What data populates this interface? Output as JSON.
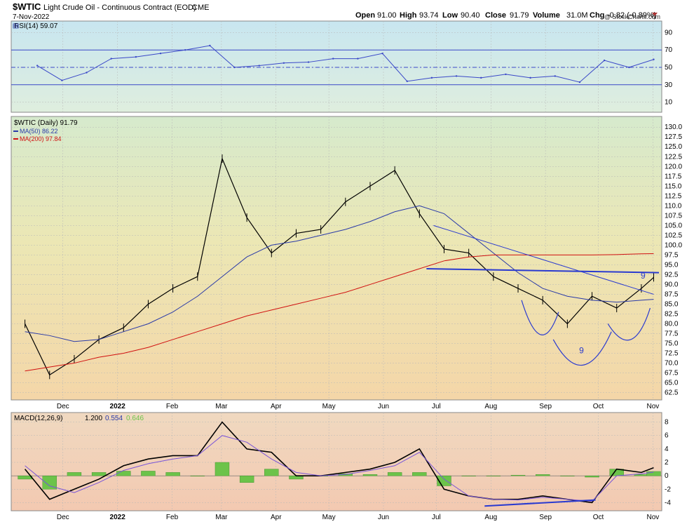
{
  "header": {
    "symbol": "$WTIC",
    "name": "Light Crude Oil - Continuous Contract (EOD)",
    "exchange": "CME",
    "date": "7-Nov-2022",
    "watermark": "@ StockCharts.com",
    "quote": {
      "open_label": "Open",
      "open": "91.00",
      "high_label": "High",
      "high": "93.74",
      "low_label": "Low",
      "low": "90.40",
      "close_label": "Close",
      "close": "91.79",
      "volume_label": "Volume",
      "volume": "31.0M",
      "chg_label": "Chg",
      "chg": "-0.82 (-0.89%)"
    }
  },
  "colors": {
    "price_line": "#000000",
    "ma50": "#2a3aa8",
    "ma200": "#d01010",
    "rsi_line": "#3a48c8",
    "rsi_fill": "#5b8fd0",
    "macd_line": "#000000",
    "signal_line": "#7a55d8",
    "hist_fill": "#6cc34a",
    "annotation": "#2a3ad0",
    "grid": "#b8b8b8"
  },
  "chart_data": [
    {
      "type": "line",
      "panel": "rsi",
      "legend": "RSI(14) 59.07",
      "ylim": [
        0,
        100
      ],
      "yticks": [
        10,
        30,
        50,
        70,
        90
      ],
      "reference_lines": [
        30,
        50,
        70
      ],
      "x": [
        "2021-11-22",
        "2021-12-06",
        "2021-12-20",
        "2022-01-03",
        "2022-01-17",
        "2022-01-31",
        "2022-02-14",
        "2022-02-28",
        "2022-03-14",
        "2022-03-28",
        "2022-04-11",
        "2022-04-25",
        "2022-05-09",
        "2022-05-23",
        "2022-06-06",
        "2022-06-20",
        "2022-07-04",
        "2022-07-18",
        "2022-08-01",
        "2022-08-15",
        "2022-08-29",
        "2022-09-12",
        "2022-09-26",
        "2022-10-10",
        "2022-10-24",
        "2022-11-07"
      ],
      "values": [
        52,
        35,
        44,
        60,
        62,
        66,
        70,
        75,
        50,
        52,
        55,
        56,
        60,
        60,
        66,
        34,
        38,
        40,
        38,
        42,
        38,
        40,
        33,
        58,
        50,
        59.07
      ]
    },
    {
      "type": "line",
      "panel": "price",
      "legend": "$WTIC (Daily) 91.79",
      "ylim": [
        61,
        132
      ],
      "yticks": [
        62.5,
        65.0,
        67.5,
        70.0,
        72.5,
        75.0,
        77.5,
        80.0,
        82.5,
        85.0,
        87.5,
        90.0,
        92.5,
        95.0,
        97.5,
        100.0,
        102.5,
        105.0,
        107.5,
        110.0,
        112.5,
        115.0,
        117.5,
        120.0,
        122.5,
        125.0,
        127.5,
        130.0
      ],
      "x_ticks": [
        "Dec",
        "2022",
        "Feb",
        "Mar",
        "Apr",
        "May",
        "Jun",
        "Jul",
        "Aug",
        "Sep",
        "Oct",
        "Nov"
      ],
      "x": [
        "2021-11-15",
        "2021-11-29",
        "2021-12-13",
        "2021-12-27",
        "2022-01-10",
        "2022-01-24",
        "2022-02-07",
        "2022-02-21",
        "2022-03-07",
        "2022-03-21",
        "2022-04-04",
        "2022-04-18",
        "2022-05-02",
        "2022-05-16",
        "2022-05-30",
        "2022-06-13",
        "2022-06-27",
        "2022-07-11",
        "2022-07-25",
        "2022-08-08",
        "2022-08-22",
        "2022-09-05",
        "2022-09-19",
        "2022-10-03",
        "2022-10-17",
        "2022-10-31",
        "2022-11-07"
      ],
      "series": [
        {
          "name": "$WTIC (Daily) 91.79",
          "values": [
            80,
            67,
            71,
            76,
            79,
            85,
            89,
            92,
            122,
            107,
            98,
            103,
            104,
            111,
            115,
            119,
            108,
            99,
            98,
            92,
            89,
            86,
            80,
            87,
            84,
            89,
            91.79
          ]
        },
        {
          "name": "MA(50) 86.22",
          "values": [
            78,
            77,
            75.5,
            76,
            78,
            80,
            83,
            87,
            92,
            97,
            100,
            101,
            102.5,
            104,
            106,
            108.5,
            110,
            108,
            103,
            98,
            93,
            89,
            87,
            86,
            85.5,
            86,
            86.22
          ]
        },
        {
          "name": "MA(200) 97.84",
          "values": [
            68,
            69,
            70,
            71.5,
            72.5,
            74,
            76,
            78,
            80,
            82,
            83.5,
            85,
            86.5,
            88,
            90,
            92,
            94,
            96,
            97,
            97.5,
            97.5,
            97.5,
            97.5,
            97.5,
            97.6,
            97.8,
            97.84
          ]
        }
      ],
      "annotations": [
        "9",
        "9"
      ]
    },
    {
      "type": "line",
      "panel": "macd",
      "legend": "MACD(12,26,9)",
      "legend_values": [
        "1.200",
        "0.554",
        "0.646"
      ],
      "ylim": [
        -5,
        9
      ],
      "yticks": [
        -4,
        -2,
        0,
        2,
        4,
        6,
        8
      ],
      "x": [
        "2021-11-15",
        "2021-11-29",
        "2021-12-13",
        "2021-12-27",
        "2022-01-10",
        "2022-01-24",
        "2022-02-07",
        "2022-02-21",
        "2022-03-07",
        "2022-03-21",
        "2022-04-04",
        "2022-04-18",
        "2022-05-02",
        "2022-05-16",
        "2022-05-30",
        "2022-06-13",
        "2022-06-27",
        "2022-07-11",
        "2022-07-25",
        "2022-08-08",
        "2022-08-22",
        "2022-09-05",
        "2022-09-19",
        "2022-10-03",
        "2022-10-17",
        "2022-10-31",
        "2022-11-07"
      ],
      "series": [
        {
          "name": "MACD",
          "values": [
            1,
            -3.5,
            -2,
            -0.5,
            1.5,
            2.5,
            3,
            3,
            8,
            4,
            3.5,
            0,
            0,
            0.5,
            1,
            2,
            4,
            -2,
            -3,
            -3.5,
            -3.5,
            -3,
            -3.5,
            -4,
            1,
            0.5,
            1.2
          ]
        },
        {
          "name": "Signal",
          "values": [
            1.5,
            -1.5,
            -2.5,
            -1,
            0.8,
            1.8,
            2.5,
            3,
            6,
            5,
            2.5,
            0.5,
            0,
            0.2,
            0.8,
            1.5,
            3.5,
            -0.5,
            -3,
            -3.5,
            -3.6,
            -3.2,
            -3.5,
            -3.8,
            0,
            0.3,
            0.554
          ]
        },
        {
          "name": "Histogram",
          "values": [
            -0.5,
            -2,
            0.5,
            0.5,
            0.7,
            0.7,
            0.5,
            0,
            2,
            -1,
            1,
            -0.5,
            0,
            0.3,
            0.2,
            0.5,
            0.5,
            -1.5,
            0,
            0,
            0.1,
            0.2,
            0,
            -0.2,
            1,
            0.2,
            0.646
          ]
        }
      ]
    }
  ]
}
